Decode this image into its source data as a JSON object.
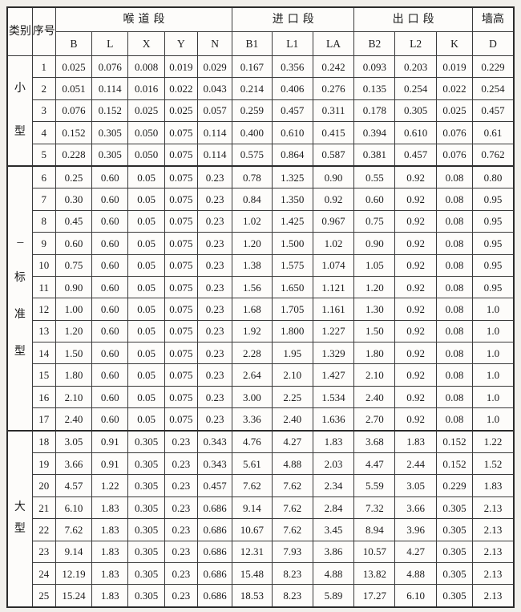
{
  "page": {
    "background_color": "#f1efeb",
    "cell_background_color": "#fdfcfa",
    "border_color": "#2b2b2b"
  },
  "table": {
    "header": {
      "category": "类别",
      "serial": "序号",
      "groups": [
        {
          "label": "喉道段",
          "cols": [
            "B",
            "L",
            "X",
            "Y",
            "N"
          ]
        },
        {
          "label": "进口段",
          "cols": [
            "B1",
            "L1",
            "LA"
          ]
        },
        {
          "label": "出口段",
          "cols": [
            "B2",
            "L2",
            "K"
          ]
        },
        {
          "label": "墙高",
          "cols": [
            "D"
          ]
        }
      ]
    },
    "sections": [
      {
        "label": "小型",
        "label_chars": [
          "小",
          "型"
        ],
        "rows": [
          {
            "no": "1",
            "values": [
              "0.025",
              "0.076",
              "0.008",
              "0.019",
              "0.029",
              "0.167",
              "0.356",
              "0.242",
              "0.093",
              "0.203",
              "0.019",
              "0.229"
            ]
          },
          {
            "no": "2",
            "values": [
              "0.051",
              "0.114",
              "0.016",
              "0.022",
              "0.043",
              "0.214",
              "0.406",
              "0.276",
              "0.135",
              "0.254",
              "0.022",
              "0.254"
            ]
          },
          {
            "no": "3",
            "values": [
              "0.076",
              "0.152",
              "0.025",
              "0.025",
              "0.057",
              "0.259",
              "0.457",
              "0.311",
              "0.178",
              "0.305",
              "0.025",
              "0.457"
            ]
          },
          {
            "no": "4",
            "values": [
              "0.152",
              "0.305",
              "0.050",
              "0.075",
              "0.114",
              "0.400",
              "0.610",
              "0.415",
              "0.394",
              "0.610",
              "0.076",
              "0.61"
            ]
          },
          {
            "no": "5",
            "values": [
              "0.228",
              "0.305",
              "0.050",
              "0.075",
              "0.114",
              "0.575",
              "0.864",
              "0.587",
              "0.381",
              "0.457",
              "0.076",
              "0.762"
            ]
          }
        ]
      },
      {
        "label": "标准型",
        "label_chars": [
          "---",
          "标",
          "准",
          "型"
        ],
        "rows": [
          {
            "no": "6",
            "values": [
              "0.25",
              "0.60",
              "0.05",
              "0.075",
              "0.23",
              "0.78",
              "1.325",
              "0.90",
              "0.55",
              "0.92",
              "0.08",
              "0.80"
            ]
          },
          {
            "no": "7",
            "values": [
              "0.30",
              "0.60",
              "0.05",
              "0.075",
              "0.23",
              "0.84",
              "1.350",
              "0.92",
              "0.60",
              "0.92",
              "0.08",
              "0.95"
            ]
          },
          {
            "no": "8",
            "values": [
              "0.45",
              "0.60",
              "0.05",
              "0.075",
              "0.23",
              "1.02",
              "1.425",
              "0.967",
              "0.75",
              "0.92",
              "0.08",
              "0.95"
            ]
          },
          {
            "no": "9",
            "values": [
              "0.60",
              "0.60",
              "0.05",
              "0.075",
              "0.23",
              "1.20",
              "1.500",
              "1.02",
              "0.90",
              "0.92",
              "0.08",
              "0.95"
            ]
          },
          {
            "no": "10",
            "values": [
              "0.75",
              "0.60",
              "0.05",
              "0.075",
              "0.23",
              "1.38",
              "1.575",
              "1.074",
              "1.05",
              "0.92",
              "0.08",
              "0.95"
            ]
          },
          {
            "no": "11",
            "values": [
              "0.90",
              "0.60",
              "0.05",
              "0.075",
              "0.23",
              "1.56",
              "1.650",
              "1.121",
              "1.20",
              "0.92",
              "0.08",
              "0.95"
            ]
          },
          {
            "no": "12",
            "values": [
              "1.00",
              "0.60",
              "0.05",
              "0.075",
              "0.23",
              "1.68",
              "1.705",
              "1.161",
              "1.30",
              "0.92",
              "0.08",
              "1.0"
            ]
          },
          {
            "no": "13",
            "values": [
              "1.20",
              "0.60",
              "0.05",
              "0.075",
              "0.23",
              "1.92",
              "1.800",
              "1.227",
              "1.50",
              "0.92",
              "0.08",
              "1.0"
            ]
          },
          {
            "no": "14",
            "values": [
              "1.50",
              "0.60",
              "0.05",
              "0.075",
              "0.23",
              "2.28",
              "1.95",
              "1.329",
              "1.80",
              "0.92",
              "0.08",
              "1.0"
            ]
          },
          {
            "no": "15",
            "values": [
              "1.80",
              "0.60",
              "0.05",
              "0.075",
              "0.23",
              "2.64",
              "2.10",
              "1.427",
              "2.10",
              "0.92",
              "0.08",
              "1.0"
            ]
          },
          {
            "no": "16",
            "values": [
              "2.10",
              "0.60",
              "0.05",
              "0.075",
              "0.23",
              "3.00",
              "2.25",
              "1.534",
              "2.40",
              "0.92",
              "0.08",
              "1.0"
            ]
          },
          {
            "no": "17",
            "values": [
              "2.40",
              "0.60",
              "0.05",
              "0.075",
              "0.23",
              "3.36",
              "2.40",
              "1.636",
              "2.70",
              "0.92",
              "0.08",
              "1.0"
            ]
          }
        ]
      },
      {
        "label": "大型",
        "label_chars": [
          "大",
          "型"
        ],
        "rows": [
          {
            "no": "18",
            "values": [
              "3.05",
              "0.91",
              "0.305",
              "0.23",
              "0.343",
              "4.76",
              "4.27",
              "1.83",
              "3.68",
              "1.83",
              "0.152",
              "1.22"
            ]
          },
          {
            "no": "19",
            "values": [
              "3.66",
              "0.91",
              "0.305",
              "0.23",
              "0.343",
              "5.61",
              "4.88",
              "2.03",
              "4.47",
              "2.44",
              "0.152",
              "1.52"
            ]
          },
          {
            "no": "20",
            "values": [
              "4.57",
              "1.22",
              "0.305",
              "0.23",
              "0.457",
              "7.62",
              "7.62",
              "2.34",
              "5.59",
              "3.05",
              "0.229",
              "1.83"
            ]
          },
          {
            "no": "21",
            "values": [
              "6.10",
              "1.83",
              "0.305",
              "0.23",
              "0.686",
              "9.14",
              "7.62",
              "2.84",
              "7.32",
              "3.66",
              "0.305",
              "2.13"
            ]
          },
          {
            "no": "22",
            "values": [
              "7.62",
              "1.83",
              "0.305",
              "0.23",
              "0.686",
              "10.67",
              "7.62",
              "3.45",
              "8.94",
              "3.96",
              "0.305",
              "2.13"
            ]
          },
          {
            "no": "23",
            "values": [
              "9.14",
              "1.83",
              "0.305",
              "0.23",
              "0.686",
              "12.31",
              "7.93",
              "3.86",
              "10.57",
              "4.27",
              "0.305",
              "2.13"
            ]
          },
          {
            "no": "24",
            "values": [
              "12.19",
              "1.83",
              "0.305",
              "0.23",
              "0.686",
              "15.48",
              "8.23",
              "4.88",
              "13.82",
              "4.88",
              "0.305",
              "2.13"
            ]
          },
          {
            "no": "25",
            "values": [
              "15.24",
              "1.83",
              "0.305",
              "0.23",
              "0.686",
              "18.53",
              "8.23",
              "5.89",
              "17.27",
              "6.10",
              "0.305",
              "2.13"
            ]
          }
        ]
      }
    ]
  }
}
